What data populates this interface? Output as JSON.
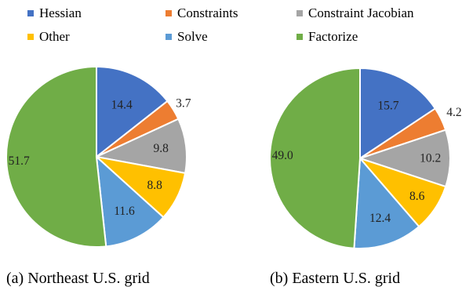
{
  "chart_data": [
    {
      "type": "pie",
      "title": "",
      "caption": "(a) Northeast U.S. grid",
      "categories": [
        "Hessian",
        "Constraints",
        "Constraint Jacobian",
        "Other",
        "Solve",
        "Factorize"
      ],
      "values": [
        14.4,
        3.7,
        9.8,
        8.8,
        11.6,
        51.7
      ],
      "labels": [
        "14.4",
        "3.7",
        "9.8",
        "8.8",
        "11.6",
        "51.7"
      ],
      "start": "12 o'clock, clockwise",
      "legend_position": "top"
    },
    {
      "type": "pie",
      "title": "",
      "caption": "(b) Eastern U.S. grid",
      "categories": [
        "Hessian",
        "Constraints",
        "Constraint Jacobian",
        "Other",
        "Solve",
        "Factorize"
      ],
      "values": [
        15.7,
        4.2,
        10.2,
        8.6,
        12.4,
        49.0
      ],
      "labels": [
        "15.7",
        "4.2",
        "10.2",
        "8.6",
        "12.4",
        "49.0"
      ],
      "start": "12 o'clock, clockwise",
      "legend_position": "top"
    }
  ],
  "legend": {
    "items": [
      {
        "label": "Hessian",
        "color": "#4472C4"
      },
      {
        "label": "Constraints",
        "color": "#ED7D31"
      },
      {
        "label": "Constraint Jacobian",
        "color": "#A5A5A5"
      },
      {
        "label": "Other",
        "color": "#FFC000"
      },
      {
        "label": "Solve",
        "color": "#5B9BD5"
      },
      {
        "label": "Factorize",
        "color": "#70AD47"
      }
    ]
  },
  "captions": {
    "a": "(a) Northeast U.S. grid",
    "b": "(b) Eastern U.S. grid"
  }
}
